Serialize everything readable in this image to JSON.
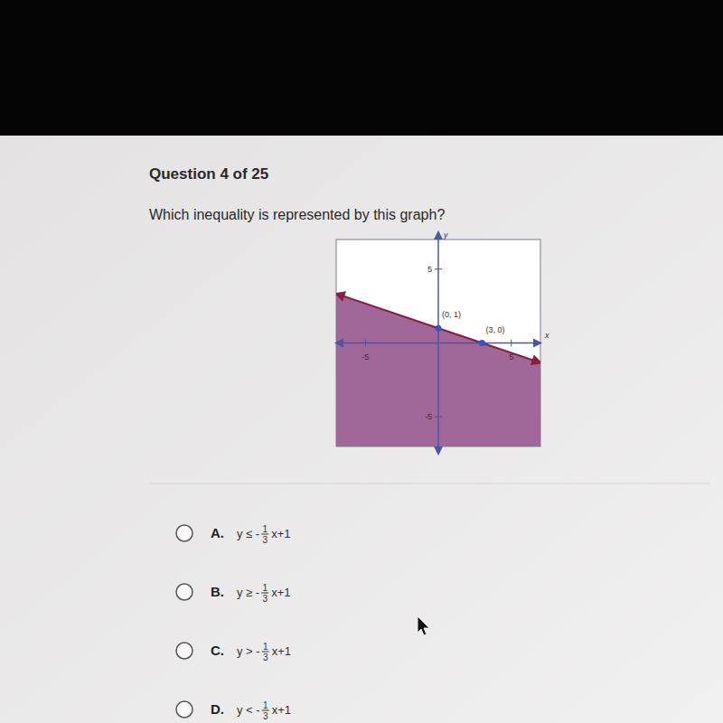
{
  "page": {
    "header": "Question 4 of 25",
    "question": "Which inequality is represented by this graph?",
    "options": [
      {
        "letter": "A.",
        "lhs": "y ≤ -",
        "numerator": "1",
        "denominator": "3",
        "rhs": "x+1"
      },
      {
        "letter": "B.",
        "lhs": "y ≥ -",
        "numerator": "1",
        "denominator": "3",
        "rhs": "x+1"
      },
      {
        "letter": "C.",
        "lhs": "y > -",
        "numerator": "1",
        "denominator": "3",
        "rhs": "x+1"
      },
      {
        "letter": "D.",
        "lhs": "y < -",
        "numerator": "1",
        "denominator": "3",
        "rhs": "x+1"
      }
    ]
  },
  "chart_data": {
    "type": "line",
    "x_label": "x",
    "y_label": "y",
    "xlim": [
      -7,
      7
    ],
    "ylim": [
      -7,
      7
    ],
    "xticks": [
      -5,
      5
    ],
    "yticks": [
      -5,
      5
    ],
    "grid": false,
    "series": [
      {
        "type": "area",
        "color": "#9b5f94",
        "x": [
          -7,
          7
        ],
        "values": [
          3.333,
          -1.333
        ]
      },
      {
        "type": "line",
        "color": "#8b1d3f",
        "x": [
          -7,
          7
        ],
        "values": [
          3.333,
          -1.333
        ]
      },
      {
        "type": "scatter",
        "color": "#2f55d4",
        "marker": "circle",
        "x": [
          0,
          3
        ],
        "values": [
          1,
          0
        ]
      }
    ],
    "annotations": [
      {
        "text": "(0, 1)",
        "x": 0,
        "y": 1
      },
      {
        "text": "(3, 0)",
        "x": 3,
        "y": 0
      }
    ]
  }
}
